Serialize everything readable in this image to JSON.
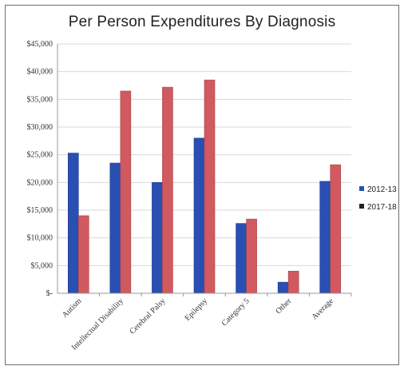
{
  "chart_data": {
    "type": "bar",
    "title": "Per Person Expenditures By Diagnosis",
    "categories": [
      "Autism",
      "Intellectual Disability",
      "Cerebral Palsy",
      "Epilepsy",
      "Category 5",
      "Other",
      "Average"
    ],
    "series": [
      {
        "name": "2012-13",
        "color": "#2a4fb3",
        "values": [
          25300,
          23500,
          20000,
          28000,
          12600,
          2000,
          20200
        ]
      },
      {
        "name": "2017-18",
        "color": "#d05a5f",
        "values": [
          14000,
          36500,
          37200,
          38500,
          13400,
          4000,
          23200
        ]
      }
    ],
    "ylim": [
      0,
      45000
    ],
    "yticks": [
      0,
      5000,
      10000,
      15000,
      20000,
      25000,
      30000,
      35000,
      40000,
      45000
    ],
    "ytick_labels": [
      "$-",
      "$5,000",
      "$10,000",
      "$15,000",
      "$20,000",
      "$25,000",
      "$30,000",
      "$35,000",
      "$40,000",
      "$45,000"
    ],
    "legend_position": "right",
    "grid": true
  }
}
